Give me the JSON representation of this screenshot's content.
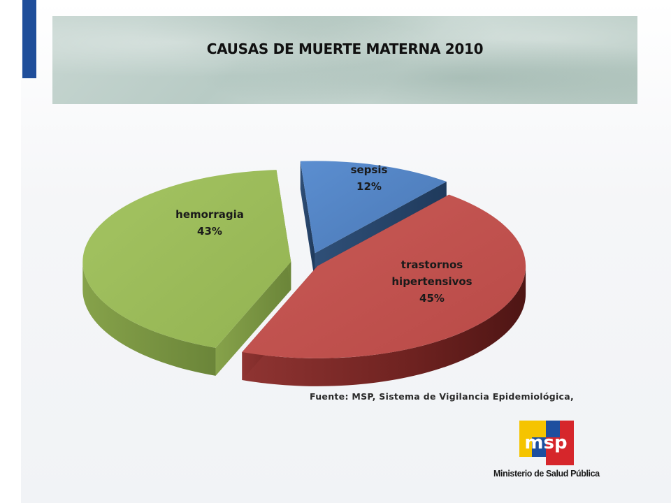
{
  "slide": {
    "title": "CAUSAS DE MUERTE MATERNA 2010",
    "source": "Fuente: MSP, Sistema de Vigilancia Epidemiológica,",
    "logo": {
      "mark_text": "msp",
      "caption": "Ministerio de Salud Pública",
      "colors": [
        "#f5c400",
        "#1d4f9f",
        "#d6262b"
      ]
    },
    "colors": {
      "accent_bar": "#1f4e9a",
      "title_band": "#c2d3cd"
    }
  },
  "chart_data": {
    "type": "pie",
    "style": "3d-exploded",
    "title": "CAUSAS DE MUERTE MATERNA 2010",
    "slices": [
      {
        "label": "sepsis",
        "value": 12,
        "display": "12%",
        "color": "#4f81bd"
      },
      {
        "label": "trastornos hipertensivos",
        "value": 45,
        "display": "45%",
        "color": "#c0504d"
      },
      {
        "label": "hemorragia",
        "value": 43,
        "display": "43%",
        "color": "#9bbb59"
      }
    ]
  }
}
